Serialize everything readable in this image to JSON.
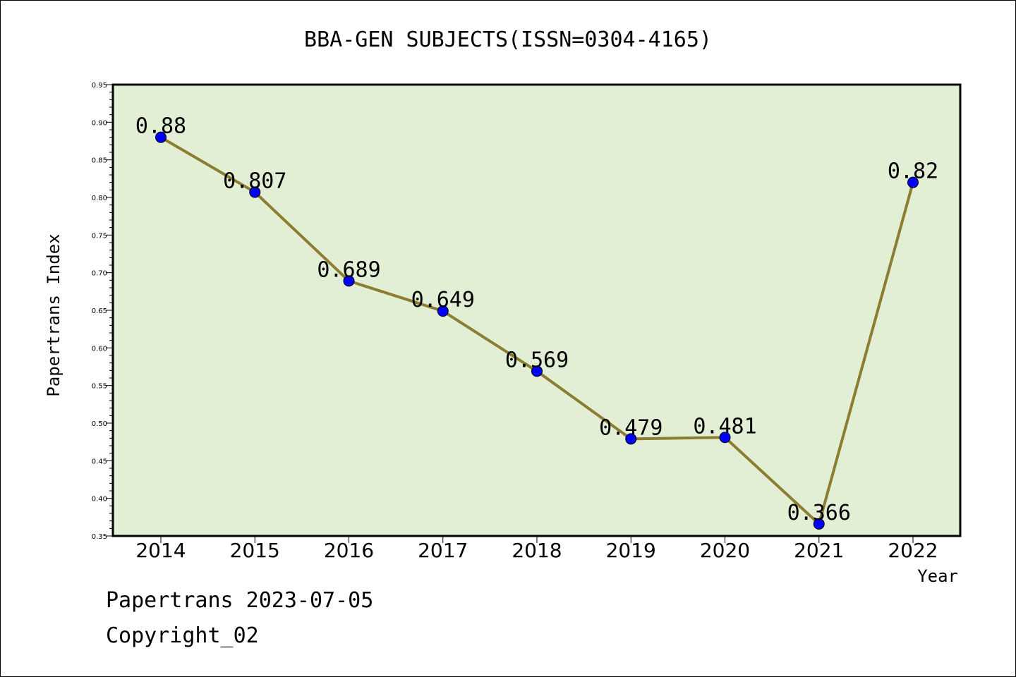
{
  "chart_data": {
    "type": "line",
    "title": "BBA-GEN SUBJECTS(ISSN=0304-4165)",
    "xlabel": "Year",
    "ylabel": "Papertrans Index",
    "categories": [
      "2014",
      "2015",
      "2016",
      "2017",
      "2018",
      "2019",
      "2020",
      "2021",
      "2022"
    ],
    "series": [
      {
        "values": [
          0.88,
          0.807,
          0.689,
          0.649,
          0.569,
          0.479,
          0.481,
          0.366,
          0.82
        ],
        "data_labels": [
          "0.88",
          "0.807",
          "0.689",
          "0.649",
          "0.569",
          "0.479",
          "0.481",
          "0.366",
          "0.82"
        ]
      }
    ],
    "ylim": [
      0.35,
      0.95
    ],
    "yticks": [
      "0.35",
      "0.40",
      "0.45",
      "0.50",
      "0.55",
      "0.60",
      "0.65",
      "0.70",
      "0.75",
      "0.80",
      "0.85",
      "0.90",
      "0.95"
    ],
    "grid": false,
    "colors": {
      "plot_background": "#e2efd5",
      "line": "#8b7d32",
      "marker": "#0000ff"
    }
  },
  "footer": {
    "line1": "Papertrans 2023-07-05",
    "line2": "Copyright_02"
  }
}
